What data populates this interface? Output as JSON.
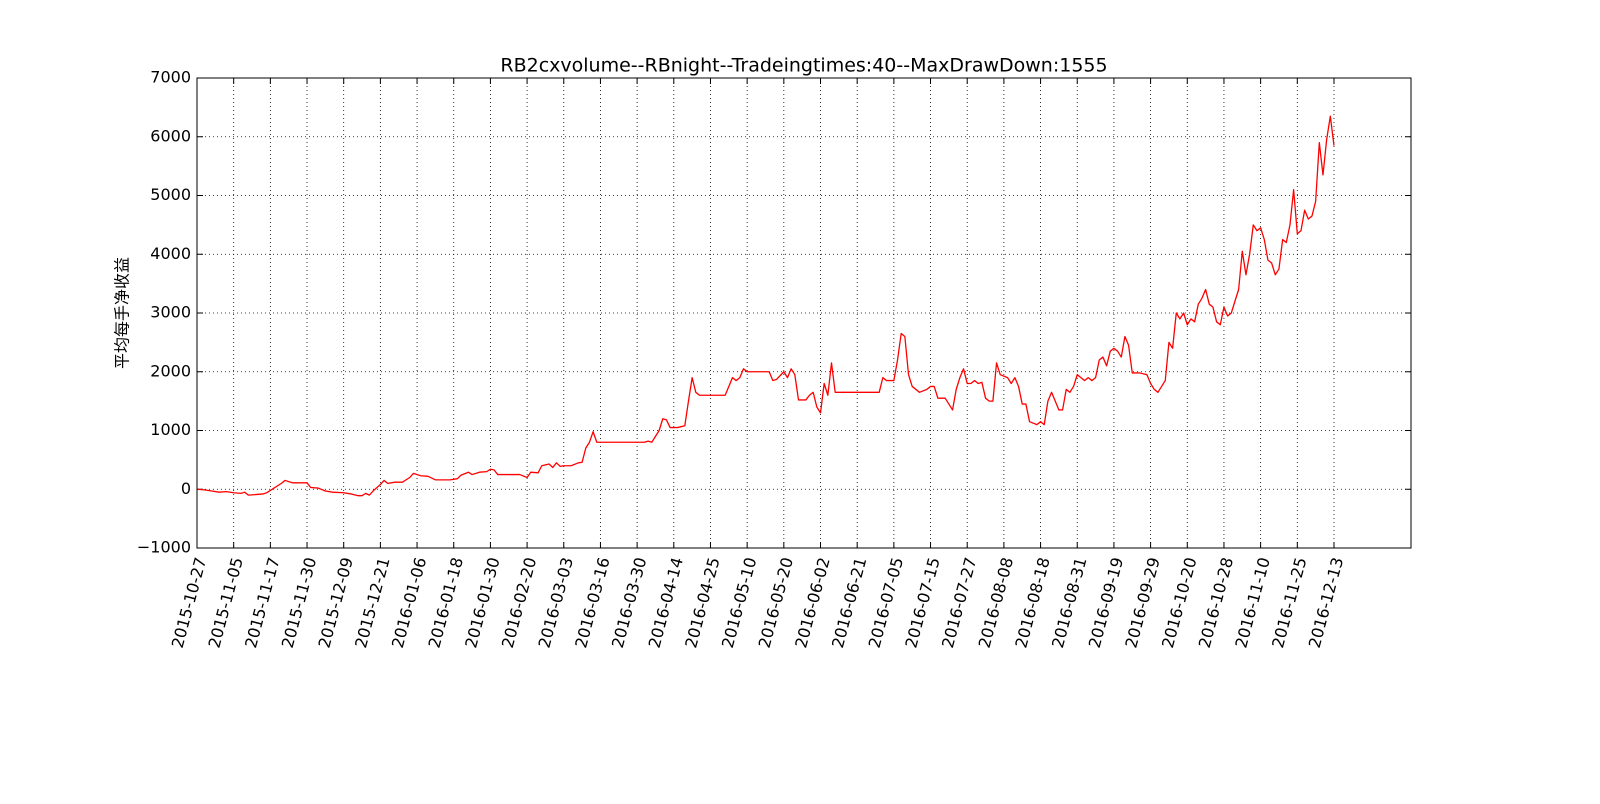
{
  "chart_data": {
    "type": "line",
    "title": "RB2cxvolume--RBnight--Tradeingtimes:40--MaxDrawDown:1555",
    "y_label": "平均每手净收益",
    "color": "#ff0000",
    "grid": true,
    "x": [
      0,
      2,
      4,
      6,
      8,
      10,
      12,
      13,
      14,
      16,
      18,
      19,
      21,
      23,
      24,
      26,
      30,
      31,
      33,
      35,
      37,
      40,
      42,
      44,
      45,
      46,
      47,
      48,
      50,
      51,
      52,
      54,
      56,
      58,
      59,
      61,
      63,
      65,
      67,
      69,
      71,
      72,
      74,
      75,
      77,
      79,
      80,
      81,
      82,
      85,
      88,
      90,
      91,
      93,
      94,
      96,
      97,
      98,
      99,
      100,
      102,
      104,
      105,
      106,
      107,
      108,
      109,
      122,
      123,
      124,
      125,
      126,
      127,
      128,
      129,
      131,
      133,
      134,
      135,
      136,
      137,
      144,
      145,
      146,
      147,
      148,
      149,
      150,
      156,
      157,
      158,
      160,
      161,
      162,
      163,
      164,
      166,
      167,
      168,
      169,
      170,
      171,
      172,
      173,
      174,
      186,
      187,
      188,
      190,
      191,
      192,
      193,
      194,
      195,
      197,
      199,
      200,
      201,
      202,
      204,
      205,
      206,
      207,
      208,
      209,
      210,
      211,
      212,
      213,
      214,
      215,
      216,
      217,
      218,
      219,
      221,
      222,
      223,
      224,
      225,
      226,
      227,
      229,
      230,
      231,
      232,
      233,
      234,
      235,
      236,
      237,
      238,
      239,
      240,
      241,
      242,
      243,
      244,
      245,
      246,
      247,
      248,
      249,
      250,
      251,
      252,
      253,
      254,
      255,
      257,
      259,
      260,
      261,
      262,
      263,
      264,
      265,
      266,
      267,
      268,
      269,
      270,
      271,
      272,
      273,
      274,
      275,
      276,
      277,
      278,
      279,
      280,
      281,
      282,
      283,
      284,
      285,
      286,
      287,
      288,
      289,
      290,
      291,
      292,
      293,
      294,
      295,
      296,
      297,
      298,
      299,
      300,
      301,
      302,
      303,
      304,
      305,
      306,
      307,
      308,
      309,
      310
    ],
    "values": [
      0,
      -10,
      -30,
      -50,
      -40,
      -60,
      -70,
      -50,
      -100,
      -90,
      -80,
      -60,
      20,
      100,
      150,
      110,
      110,
      30,
      20,
      -30,
      -50,
      -60,
      -80,
      -110,
      -110,
      -70,
      -100,
      -30,
      80,
      150,
      100,
      120,
      120,
      200,
      270,
      230,
      220,
      160,
      160,
      160,
      180,
      240,
      290,
      250,
      290,
      300,
      340,
      330,
      250,
      250,
      250,
      200,
      290,
      280,
      400,
      430,
      370,
      450,
      390,
      400,
      400,
      450,
      460,
      700,
      800,
      980,
      800,
      800,
      820,
      800,
      900,
      1000,
      1200,
      1180,
      1050,
      1050,
      1080,
      1500,
      1900,
      1650,
      1600,
      1600,
      1750,
      1900,
      1850,
      1900,
      2050,
      2000,
      2000,
      1850,
      1870,
      2000,
      1900,
      2050,
      1950,
      1520,
      1520,
      1600,
      1650,
      1400,
      1300,
      1800,
      1600,
      2150,
      1650,
      1650,
      1900,
      1850,
      1850,
      2200,
      2650,
      2600,
      1950,
      1750,
      1650,
      1700,
      1750,
      1750,
      1550,
      1550,
      1450,
      1350,
      1700,
      1900,
      2050,
      1800,
      1800,
      1850,
      1800,
      1820,
      1550,
      1500,
      1500,
      2150,
      1950,
      1900,
      1800,
      1900,
      1750,
      1450,
      1450,
      1150,
      1100,
      1150,
      1100,
      1500,
      1650,
      1500,
      1350,
      1350,
      1700,
      1650,
      1750,
      1950,
      1900,
      1850,
      1900,
      1850,
      1900,
      2200,
      2250,
      2100,
      2350,
      2400,
      2350,
      2250,
      2600,
      2450,
      1980,
      1980,
      1950,
      1800,
      1700,
      1650,
      1750,
      1850,
      2500,
      2400,
      3000,
      2900,
      3000,
      2800,
      2900,
      2850,
      3150,
      3250,
      3400,
      3150,
      3100,
      2850,
      2800,
      3100,
      2950,
      3000,
      3200,
      3400,
      4050,
      3650,
      4000,
      4500,
      4400,
      4450,
      4250,
      3900,
      3850,
      3650,
      3750,
      4250,
      4200,
      4500,
      5100,
      4350,
      4400,
      4750,
      4600,
      4650,
      4900,
      5900,
      5350,
      5950,
      6350,
      5850
    ],
    "xlim": [
      0,
      331
    ],
    "xticks": [
      {
        "value": 0,
        "label": "2015-10-27"
      },
      {
        "value": 10,
        "label": "2015-11-05"
      },
      {
        "value": 20,
        "label": "2015-11-17"
      },
      {
        "value": 30,
        "label": "2015-11-30"
      },
      {
        "value": 40,
        "label": "2015-12-09"
      },
      {
        "value": 50,
        "label": "2015-12-21"
      },
      {
        "value": 60,
        "label": "2016-01-06"
      },
      {
        "value": 70,
        "label": "2016-01-18"
      },
      {
        "value": 80,
        "label": "2016-01-30"
      },
      {
        "value": 90,
        "label": "2016-02-20"
      },
      {
        "value": 100,
        "label": "2016-03-03"
      },
      {
        "value": 110,
        "label": "2016-03-16"
      },
      {
        "value": 120,
        "label": "2016-03-30"
      },
      {
        "value": 130,
        "label": "2016-04-14"
      },
      {
        "value": 140,
        "label": "2016-04-25"
      },
      {
        "value": 150,
        "label": "2016-05-10"
      },
      {
        "value": 160,
        "label": "2016-05-20"
      },
      {
        "value": 170,
        "label": "2016-06-02"
      },
      {
        "value": 180,
        "label": "2016-06-21"
      },
      {
        "value": 190,
        "label": "2016-07-05"
      },
      {
        "value": 200,
        "label": "2016-07-15"
      },
      {
        "value": 210,
        "label": "2016-07-27"
      },
      {
        "value": 220,
        "label": "2016-08-08"
      },
      {
        "value": 230,
        "label": "2016-08-18"
      },
      {
        "value": 240,
        "label": "2016-08-31"
      },
      {
        "value": 250,
        "label": "2016-09-19"
      },
      {
        "value": 260,
        "label": "2016-09-29"
      },
      {
        "value": 270,
        "label": "2016-10-20"
      },
      {
        "value": 280,
        "label": "2016-10-28"
      },
      {
        "value": 290,
        "label": "2016-11-10"
      },
      {
        "value": 300,
        "label": "2016-11-25"
      },
      {
        "value": 310,
        "label": "2016-12-13"
      }
    ],
    "ylim": [
      -1000,
      7000
    ],
    "yticks": [
      {
        "value": -1000,
        "label": "−1000"
      },
      0,
      1000,
      2000,
      3000,
      4000,
      5000,
      6000,
      7000
    ]
  }
}
